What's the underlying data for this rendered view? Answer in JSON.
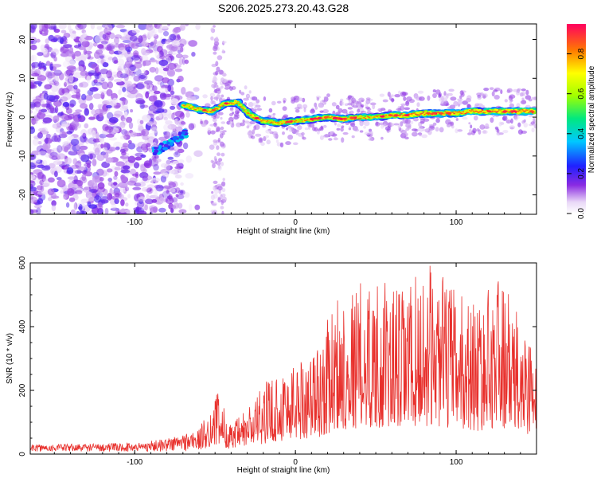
{
  "title": "S206.2025.273.20.43.G28",
  "chart_data": [
    {
      "type": "heatmap",
      "xlabel": "Height of straight line (km)",
      "ylabel": "Frequency (Hz)",
      "xlim": [
        -165,
        150
      ],
      "ylim": [
        -25,
        24
      ],
      "xticks": [
        -100,
        0,
        100
      ],
      "yticks": [
        -20,
        -10,
        0,
        10,
        20
      ],
      "colorbar": {
        "label": "Normalized spectral amplitude",
        "range": [
          0,
          0.95
        ],
        "ticks": [
          0.0,
          0.2,
          0.4,
          0.6,
          0.8
        ]
      },
      "ridge": [
        {
          "x": -68,
          "y": 3.0
        },
        {
          "x": -60,
          "y": 2.0
        },
        {
          "x": -52,
          "y": 1.5
        },
        {
          "x": -44,
          "y": 3.5
        },
        {
          "x": -36,
          "y": 3.8
        },
        {
          "x": -28,
          "y": 0.5
        },
        {
          "x": -20,
          "y": -1.0
        },
        {
          "x": -10,
          "y": -1.5
        },
        {
          "x": 0,
          "y": -1.0
        },
        {
          "x": 10,
          "y": -0.5
        },
        {
          "x": 20,
          "y": 0.0
        },
        {
          "x": 30,
          "y": -0.5
        },
        {
          "x": 40,
          "y": 0.0
        },
        {
          "x": 50,
          "y": 0.0
        },
        {
          "x": 60,
          "y": 0.5
        },
        {
          "x": 70,
          "y": 0.5
        },
        {
          "x": 80,
          "y": 1.0
        },
        {
          "x": 90,
          "y": 1.0
        },
        {
          "x": 100,
          "y": 1.0
        },
        {
          "x": 110,
          "y": 1.5
        },
        {
          "x": 120,
          "y": 1.5
        },
        {
          "x": 130,
          "y": 1.5
        },
        {
          "x": 140,
          "y": 1.5
        },
        {
          "x": 148,
          "y": 1.5
        }
      ]
    },
    {
      "type": "line",
      "xlabel": "Height of straight line (km)",
      "ylabel": "SNR (10 * v/v)",
      "xlim": [
        -165,
        150
      ],
      "ylim": [
        0,
        600
      ],
      "xticks": [
        -100,
        0,
        100
      ],
      "yticks": [
        0,
        200,
        400,
        600
      ],
      "line_color": "#e8302c",
      "envelope": [
        {
          "x": -165,
          "y": 30
        },
        {
          "x": -100,
          "y": 35
        },
        {
          "x": -80,
          "y": 50
        },
        {
          "x": -60,
          "y": 80
        },
        {
          "x": -48,
          "y": 200
        },
        {
          "x": -40,
          "y": 90
        },
        {
          "x": -30,
          "y": 150
        },
        {
          "x": -15,
          "y": 250
        },
        {
          "x": 0,
          "y": 300
        },
        {
          "x": 15,
          "y": 350
        },
        {
          "x": 25,
          "y": 500
        },
        {
          "x": 45,
          "y": 560
        },
        {
          "x": 65,
          "y": 520
        },
        {
          "x": 85,
          "y": 600
        },
        {
          "x": 100,
          "y": 520
        },
        {
          "x": 115,
          "y": 480
        },
        {
          "x": 126,
          "y": 580
        },
        {
          "x": 140,
          "y": 420
        },
        {
          "x": 150,
          "y": 380
        }
      ]
    }
  ]
}
